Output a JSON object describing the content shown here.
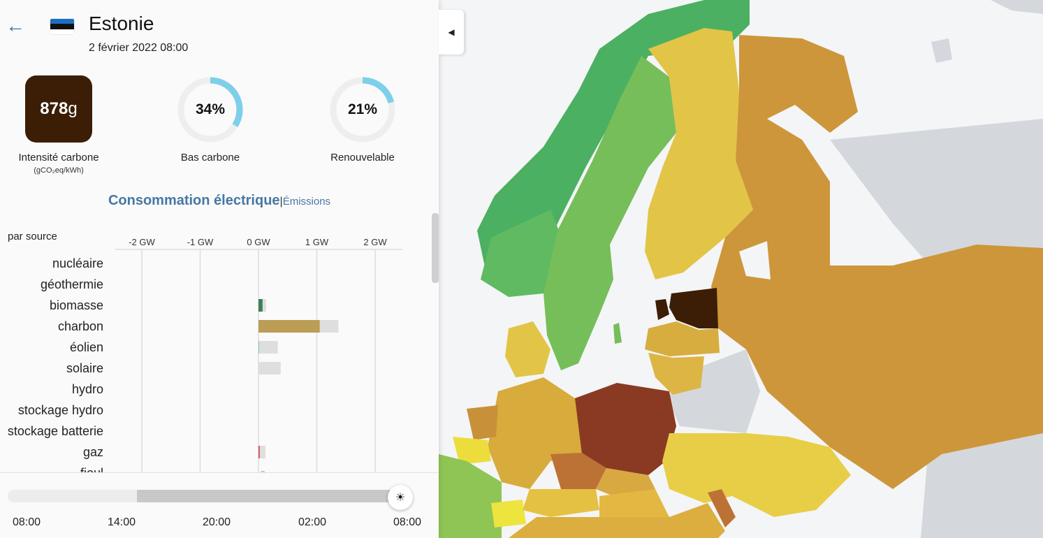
{
  "zone": {
    "name": "Estonie",
    "datetime": "2 février 2022 08:00",
    "flag_colors": [
      "#1b6fc4",
      "#111111",
      "#ffffff"
    ]
  },
  "metrics": {
    "carbon_value": "878",
    "carbon_unit": "g",
    "carbon_label": "Intensité carbone",
    "carbon_sublabel": "(gCO₂eq/kWh)",
    "low_carbon_pct": 34,
    "low_carbon_text": "34%",
    "low_carbon_label": "Bas carbone",
    "renewable_pct": 21,
    "renewable_text": "21%",
    "renewable_label": "Renouvelable"
  },
  "tabs": {
    "active": "Consommation électrique",
    "separator": "|",
    "other": "Émissions"
  },
  "chart_data": {
    "type": "bar",
    "title": "par source",
    "xaxis_ticks": [
      "-2 GW",
      "-1 GW",
      "0 GW",
      "1 GW",
      "2 GW"
    ],
    "xlim": [
      -2,
      2.5
    ],
    "unit": "GW",
    "categories": [
      "nucléaire",
      "géothermie",
      "biomasse",
      "charbon",
      "éolien",
      "solaire",
      "hydro",
      "stockage hydro",
      "stockage batterie",
      "gaz",
      "fioul"
    ],
    "series": [
      {
        "values": [
          0,
          0,
          0.07,
          1.05,
          0.01,
          0,
          0,
          0,
          0,
          0.02,
          0
        ]
      },
      {
        "values": [
          0,
          0,
          0.13,
          1.37,
          0.33,
          0.38,
          0,
          0,
          0,
          0.12,
          0
        ]
      }
    ],
    "colors": [
      "#2f7b5c",
      "#2f7b5c",
      "#3a7f5b",
      "#bb9d55",
      "#74c7b8",
      "#f1c232",
      "#2b73b8",
      "#2b73b8",
      "#2b73b8",
      "#c9464f",
      "#8a8a8a"
    ],
    "capacity_color": "#dedede",
    "fioul_marker": "?"
  },
  "timeline": {
    "labels": [
      "08:00",
      "14:00",
      "20:00",
      "02:00",
      "08:00"
    ],
    "selected_fraction": 1.0,
    "shaded_start": 0.325,
    "knob_icon": "sun-icon"
  },
  "colors": {
    "accent": "#4578a4",
    "low_carbon": "#7dcfea"
  }
}
